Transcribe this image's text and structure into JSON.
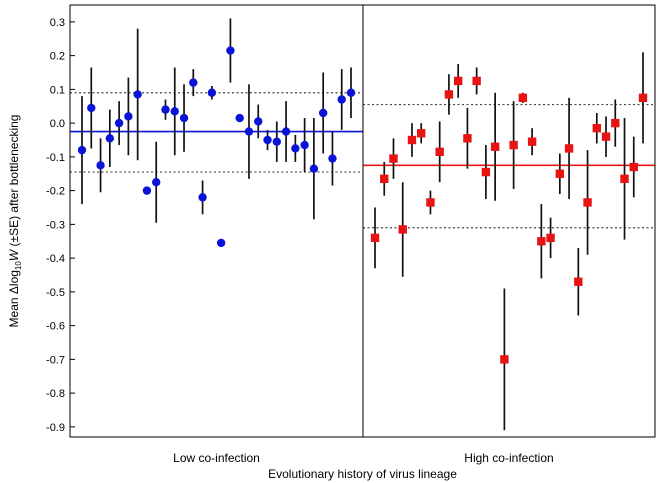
{
  "chart_data": {
    "type": "scatter",
    "title": "",
    "xlabel": "Evolutionary history of virus lineage",
    "ylabel_parts": {
      "prefix": "Mean Δlog",
      "subscript": "10",
      "variable": "W",
      "suffix": " (±SE) after bottlenecking"
    },
    "ylim": [
      -0.93,
      0.35
    ],
    "yticks": [
      0.3,
      0.2,
      0.1,
      0.0,
      -0.1,
      -0.2,
      -0.3,
      -0.4,
      -0.5,
      -0.6,
      -0.7,
      -0.8,
      -0.9
    ],
    "ytick_labels": [
      "0.3",
      "0.2",
      "0.1",
      "0.0",
      "-0.1",
      "-0.2",
      "-0.3",
      "-0.4",
      "-0.5",
      "-0.6",
      "-0.7",
      "-0.8",
      "-0.9"
    ],
    "grid": false,
    "legend": "none",
    "panels": [
      {
        "label": "Low co-infection",
        "marker": "circle",
        "color": "#0a14d8",
        "mean": -0.025,
        "dotted_bounds": [
          0.09,
          -0.145
        ],
        "points": [
          {
            "y": -0.08,
            "se": 0.16
          },
          {
            "y": 0.045,
            "se": 0.12
          },
          {
            "y": -0.125,
            "se": 0.08
          },
          {
            "y": -0.045,
            "se": 0.085
          },
          {
            "y": 0.0,
            "se": 0.065
          },
          {
            "y": 0.02,
            "se": 0.115
          },
          {
            "y": 0.085,
            "se": 0.195
          },
          {
            "y": -0.2,
            "se": 0.0
          },
          {
            "y": -0.175,
            "se": 0.12
          },
          {
            "y": 0.04,
            "se": 0.03
          },
          {
            "y": 0.035,
            "se": 0.13
          },
          {
            "y": 0.015,
            "se": 0.1
          },
          {
            "y": 0.12,
            "se": 0.04
          },
          {
            "y": -0.22,
            "se": 0.05
          },
          {
            "y": 0.09,
            "se": 0.02
          },
          {
            "y": -0.355,
            "se": 0.0
          },
          {
            "y": 0.215,
            "se": 0.095
          },
          {
            "y": 0.015,
            "se": 0.0
          },
          {
            "y": -0.025,
            "se": 0.14
          },
          {
            "y": 0.005,
            "se": 0.05
          },
          {
            "y": -0.05,
            "se": 0.03
          },
          {
            "y": -0.055,
            "se": 0.06
          },
          {
            "y": -0.025,
            "se": 0.09
          },
          {
            "y": -0.075,
            "se": 0.04
          },
          {
            "y": -0.065,
            "se": 0.08
          },
          {
            "y": -0.135,
            "se": 0.15
          },
          {
            "y": 0.03,
            "se": 0.12
          },
          {
            "y": -0.105,
            "se": 0.08
          },
          {
            "y": 0.07,
            "se": 0.09
          },
          {
            "y": 0.09,
            "se": 0.075
          }
        ]
      },
      {
        "label": "High co-infection",
        "marker": "square",
        "color": "#e81414",
        "mean": -0.125,
        "dotted_bounds": [
          0.055,
          -0.31
        ],
        "points": [
          {
            "y": -0.34,
            "se": 0.09
          },
          {
            "y": -0.165,
            "se": 0.05
          },
          {
            "y": -0.105,
            "se": 0.06
          },
          {
            "y": -0.315,
            "se": 0.14
          },
          {
            "y": -0.05,
            "se": 0.05
          },
          {
            "y": -0.03,
            "se": 0.03
          },
          {
            "y": -0.235,
            "se": 0.035
          },
          {
            "y": -0.085,
            "se": 0.09
          },
          {
            "y": 0.085,
            "se": 0.06
          },
          {
            "y": 0.125,
            "se": 0.05
          },
          {
            "y": -0.045,
            "se": 0.09
          },
          {
            "y": 0.125,
            "se": 0.04
          },
          {
            "y": -0.145,
            "se": 0.08
          },
          {
            "y": -0.07,
            "se": 0.16
          },
          {
            "y": -0.7,
            "se": 0.21
          },
          {
            "y": -0.065,
            "se": 0.13
          },
          {
            "y": 0.075,
            "se": 0.015
          },
          {
            "y": -0.055,
            "se": 0.04
          },
          {
            "y": -0.35,
            "se": 0.11
          },
          {
            "y": -0.34,
            "se": 0.06
          },
          {
            "y": -0.15,
            "se": 0.06
          },
          {
            "y": -0.075,
            "se": 0.15
          },
          {
            "y": -0.47,
            "se": 0.1
          },
          {
            "y": -0.235,
            "se": 0.155
          },
          {
            "y": -0.015,
            "se": 0.045
          },
          {
            "y": -0.04,
            "se": 0.06
          },
          {
            "y": 0.0,
            "se": 0.07
          },
          {
            "y": -0.165,
            "se": 0.18
          },
          {
            "y": -0.13,
            "se": 0.09
          },
          {
            "y": 0.075,
            "se": 0.135
          }
        ]
      }
    ]
  }
}
